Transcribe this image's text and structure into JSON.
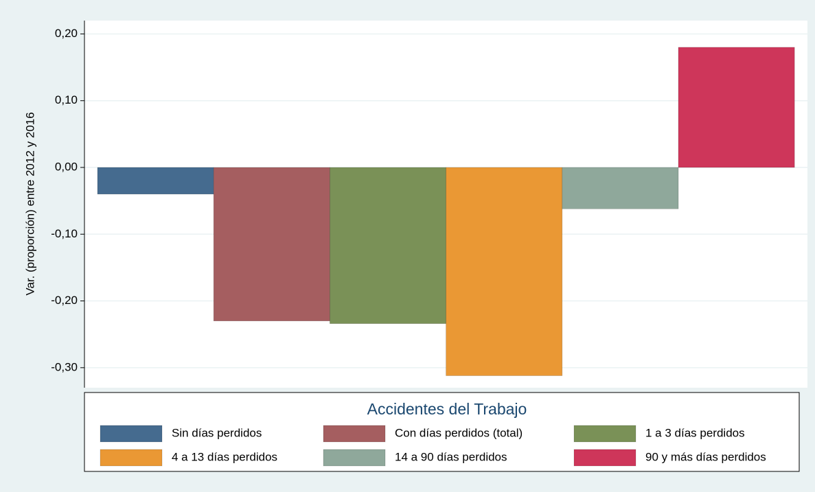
{
  "chart_data": {
    "type": "bar",
    "y_label": "Var. (proporción) entre 2012 y 2016",
    "legend_title": "Accidentes del Trabajo",
    "series": [
      {
        "name": "Sin días perdidos",
        "color": "#456b8f",
        "values": [
          -0.04
        ]
      },
      {
        "name": "Con días perdidos (total)",
        "color": "#a55e60",
        "values": [
          -0.23
        ]
      },
      {
        "name": "1 a 3 días perdidos",
        "color": "#7a9157",
        "values": [
          -0.234
        ]
      },
      {
        "name": "4 a 13 días perdidos",
        "color": "#ea9834",
        "values": [
          -0.312
        ]
      },
      {
        "name": "14 a 90 días perdidos",
        "color": "#8fa89b",
        "values": [
          -0.062
        ]
      },
      {
        "name": "90 y más días perdidos",
        "color": "#ce365a",
        "values": [
          0.18
        ]
      }
    ],
    "ylim": [
      -0.33,
      0.22
    ],
    "yticks": [
      {
        "value": -0.3,
        "label": "-0,30"
      },
      {
        "value": -0.2,
        "label": "-0,20"
      },
      {
        "value": -0.1,
        "label": "-0,10"
      },
      {
        "value": 0,
        "label": "0,00"
      },
      {
        "value": 0.1,
        "label": "0,10"
      },
      {
        "value": 0.2,
        "label": "0,20"
      }
    ],
    "grid": true,
    "legend": "bottom"
  }
}
